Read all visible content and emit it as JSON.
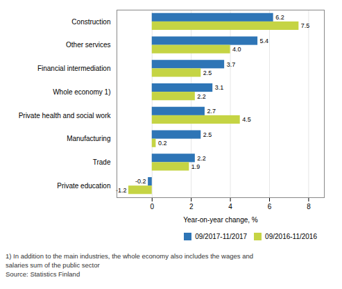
{
  "chart_data": {
    "type": "bar",
    "orientation": "horizontal",
    "categories": [
      "Construction",
      "Other services",
      "Financial intermediation",
      "Whole economy 1)",
      "Private health and social work",
      "Manufacturing",
      "Trade",
      "Private education"
    ],
    "series": [
      {
        "name": "09/2017-11/2017",
        "color": "#2E75B6",
        "values": [
          6.2,
          5.4,
          3.7,
          3.1,
          2.7,
          2.5,
          2.2,
          -0.2
        ],
        "value_labels": [
          "6.2",
          "5.4",
          "3.7",
          "3.1",
          "2.7",
          "2.5",
          "2.2",
          "-0.2"
        ]
      },
      {
        "name": "09/2016-11/2016",
        "color": "#C5D444",
        "values": [
          7.5,
          4.0,
          2.5,
          2.2,
          4.5,
          0.2,
          1.9,
          -1.2
        ],
        "value_labels": [
          "7.5",
          "4.0",
          "2.5",
          "2.2",
          "4.5",
          "0.2",
          "1.9",
          "-1.2"
        ]
      }
    ],
    "xlabel": "Year-on-year change, %",
    "xlim": [
      -1.8,
      8.8
    ],
    "xticks": [
      0,
      2,
      4,
      6,
      8
    ],
    "grid": true,
    "legend": "lower right",
    "data_labels": true,
    "annotations": [
      "1) In addition to the main industries, the whole economy also includes the wages and",
      "salaries sum of the public sector",
      "Source: Statistics Finland"
    ]
  }
}
